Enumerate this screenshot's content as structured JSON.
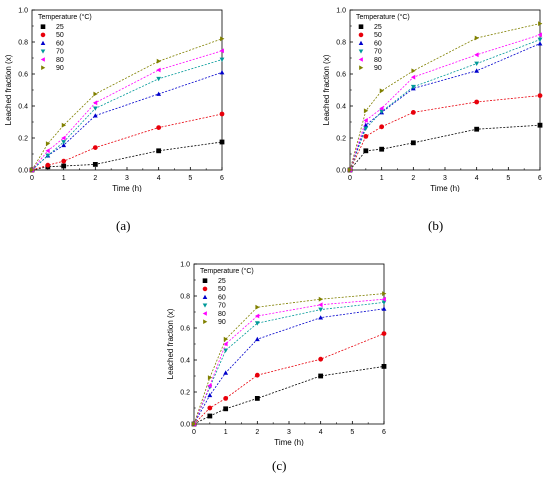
{
  "chart_data": [
    {
      "type": "line",
      "panel": "(a)",
      "xlabel": "Time (h)",
      "ylabel": "Leached fraction (x)",
      "xlim": [
        0,
        6
      ],
      "ylim": [
        0,
        1.0
      ],
      "xticks": [
        "0",
        "1",
        "2",
        "3",
        "4",
        "5",
        "6"
      ],
      "yticks": [
        "0.0",
        "0.2",
        "0.4",
        "0.6",
        "0.8",
        "1.0"
      ],
      "legend_title": "Temperature (°C)",
      "legend_position": "top-left",
      "x": [
        0,
        0.5,
        1,
        2,
        4,
        6
      ],
      "series": [
        {
          "name": "25",
          "color": "#000000",
          "marker": "square",
          "values": [
            0,
            0.02,
            0.025,
            0.035,
            0.12,
            0.175
          ]
        },
        {
          "name": "50",
          "color": "#e8000b",
          "marker": "circle",
          "values": [
            0,
            0.03,
            0.055,
            0.14,
            0.265,
            0.35
          ]
        },
        {
          "name": "60",
          "color": "#0000cc",
          "marker": "triangle-up",
          "values": [
            0,
            0.09,
            0.155,
            0.34,
            0.475,
            0.61
          ]
        },
        {
          "name": "70",
          "color": "#009999",
          "marker": "triangle-down",
          "values": [
            0,
            0.09,
            0.175,
            0.385,
            0.57,
            0.69
          ]
        },
        {
          "name": "80",
          "color": "#ff00ff",
          "marker": "triangle-left",
          "values": [
            0,
            0.12,
            0.2,
            0.42,
            0.625,
            0.745
          ]
        },
        {
          "name": "90",
          "color": "#808000",
          "marker": "triangle-right",
          "values": [
            0,
            0.165,
            0.28,
            0.475,
            0.68,
            0.82
          ]
        }
      ]
    },
    {
      "type": "line",
      "panel": "(b)",
      "xlabel": "Time (h)",
      "ylabel": "Leached fraction (x)",
      "xlim": [
        0,
        6
      ],
      "ylim": [
        0,
        1.0
      ],
      "xticks": [
        "0",
        "1",
        "2",
        "3",
        "4",
        "5",
        "6"
      ],
      "yticks": [
        "0.0",
        "0.2",
        "0.4",
        "0.6",
        "0.8",
        "1.0"
      ],
      "legend_title": "Temperature (°C)",
      "legend_position": "top-left",
      "x": [
        0,
        0.5,
        1,
        2,
        4,
        6
      ],
      "series": [
        {
          "name": "25",
          "color": "#000000",
          "marker": "square",
          "values": [
            0,
            0.12,
            0.13,
            0.17,
            0.255,
            0.28
          ]
        },
        {
          "name": "50",
          "color": "#e8000b",
          "marker": "circle",
          "values": [
            0,
            0.21,
            0.27,
            0.36,
            0.425,
            0.465
          ]
        },
        {
          "name": "60",
          "color": "#0000cc",
          "marker": "triangle-up",
          "values": [
            0,
            0.28,
            0.36,
            0.51,
            0.62,
            0.79
          ]
        },
        {
          "name": "70",
          "color": "#009999",
          "marker": "triangle-down",
          "values": [
            0,
            0.26,
            0.365,
            0.52,
            0.665,
            0.815
          ]
        },
        {
          "name": "80",
          "color": "#ff00ff",
          "marker": "triangle-left",
          "values": [
            0,
            0.31,
            0.385,
            0.58,
            0.72,
            0.845
          ]
        },
        {
          "name": "90",
          "color": "#808000",
          "marker": "triangle-right",
          "values": [
            0,
            0.37,
            0.495,
            0.62,
            0.825,
            0.915
          ]
        }
      ]
    },
    {
      "type": "line",
      "panel": "(c)",
      "xlabel": "Time (h)",
      "ylabel": "Leached fraction (x)",
      "xlim": [
        0,
        6
      ],
      "ylim": [
        0,
        1.0
      ],
      "xticks": [
        "0",
        "1",
        "2",
        "3",
        "4",
        "5",
        "6"
      ],
      "yticks": [
        "0.0",
        "0.2",
        "0.4",
        "0.6",
        "0.8",
        "1.0"
      ],
      "legend_title": "Temperature (°C)",
      "legend_position": "top-left",
      "x": [
        0,
        0.5,
        1,
        2,
        4,
        6
      ],
      "series": [
        {
          "name": "25",
          "color": "#000000",
          "marker": "square",
          "values": [
            0,
            0.05,
            0.095,
            0.16,
            0.3,
            0.36
          ]
        },
        {
          "name": "50",
          "color": "#e8000b",
          "marker": "circle",
          "values": [
            0,
            0.1,
            0.16,
            0.305,
            0.405,
            0.565
          ]
        },
        {
          "name": "60",
          "color": "#0000cc",
          "marker": "triangle-up",
          "values": [
            0,
            0.18,
            0.32,
            0.53,
            0.665,
            0.72
          ]
        },
        {
          "name": "70",
          "color": "#009999",
          "marker": "triangle-down",
          "values": [
            0,
            0.23,
            0.46,
            0.63,
            0.715,
            0.76
          ]
        },
        {
          "name": "80",
          "color": "#ff00ff",
          "marker": "triangle-left",
          "values": [
            0,
            0.24,
            0.5,
            0.675,
            0.745,
            0.78
          ]
        },
        {
          "name": "90",
          "color": "#808000",
          "marker": "triangle-right",
          "values": [
            0,
            0.29,
            0.53,
            0.73,
            0.78,
            0.815
          ]
        }
      ]
    }
  ]
}
